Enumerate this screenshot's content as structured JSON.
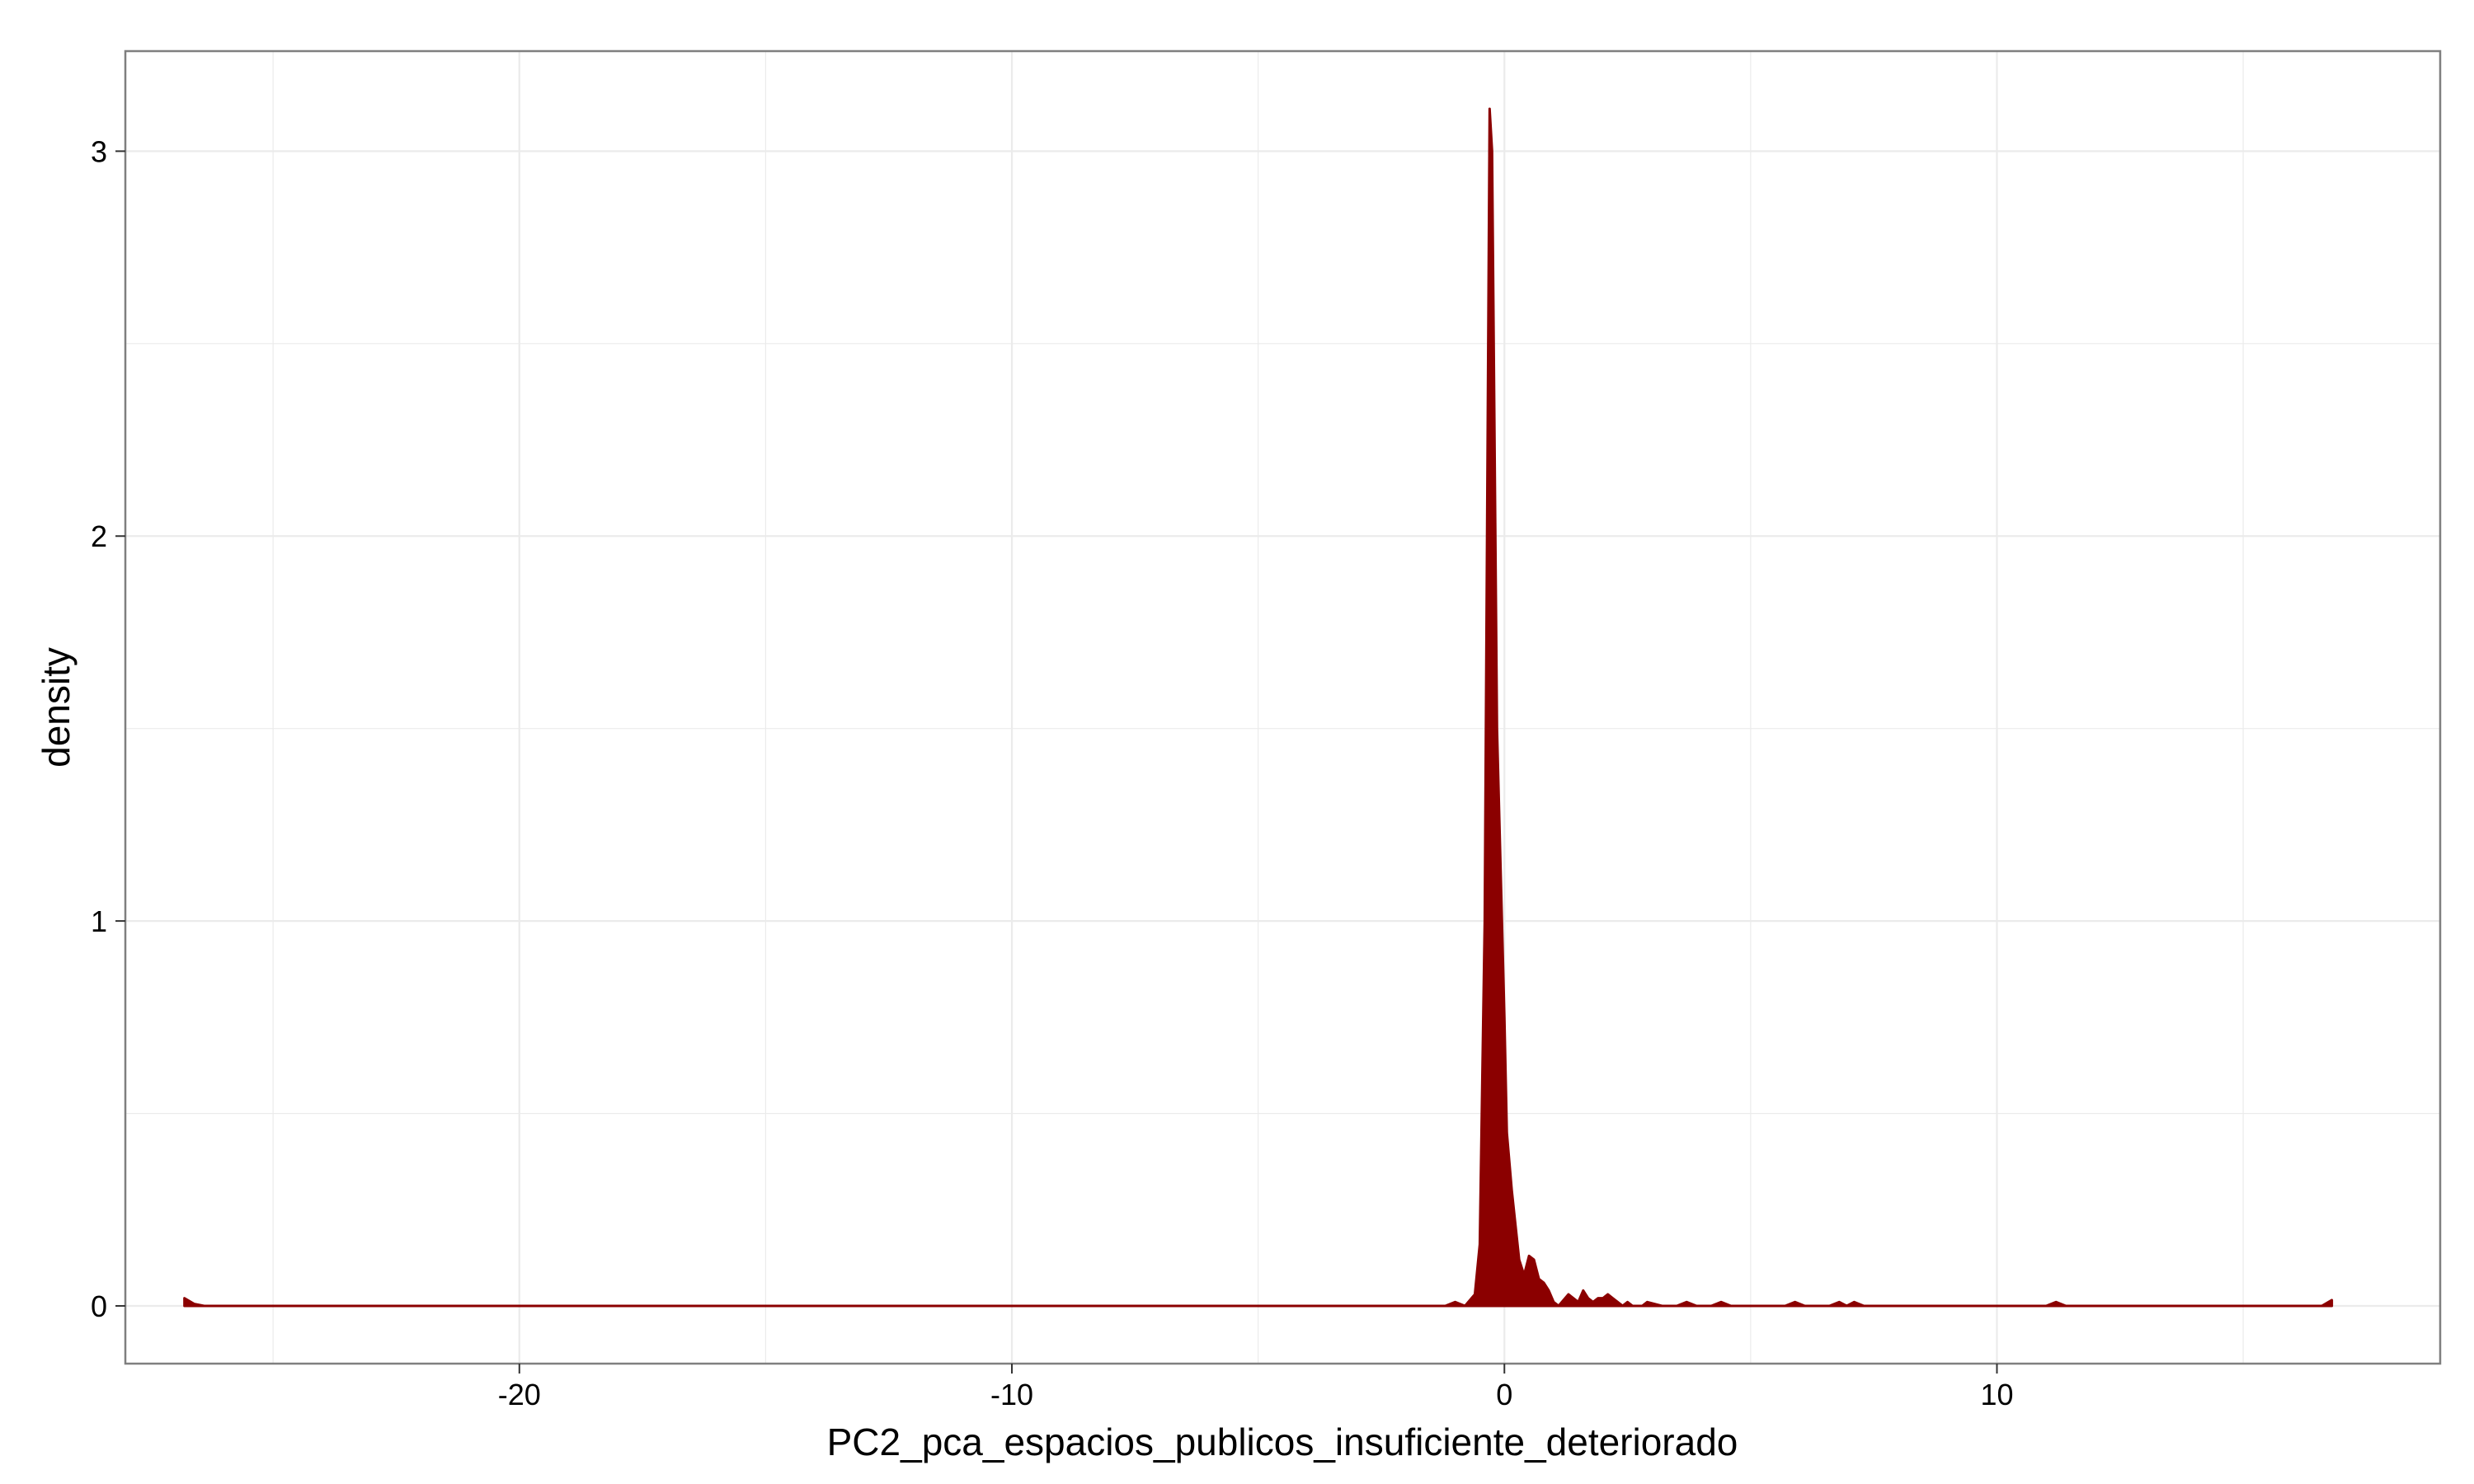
{
  "chart_data": {
    "type": "area",
    "title": "",
    "xlabel": "PC2_pca_espacios_publicos_insuficiente_deteriorado",
    "ylabel": "density",
    "xlim": [
      -28.0,
      19.0
    ],
    "ylim": [
      -0.15,
      3.26
    ],
    "x_ticks": [
      -20,
      -10,
      0,
      10
    ],
    "x_tick_labels": [
      "-20",
      "-10",
      "0",
      "10"
    ],
    "y_ticks": [
      0,
      1,
      2,
      3
    ],
    "y_tick_labels": [
      "0",
      "1",
      "2",
      "3"
    ],
    "grid": true,
    "legend": "none",
    "colors": {
      "fill": "#8b0000",
      "panel_border": "#7f7f7f",
      "grid": "#ebebeb"
    },
    "series": [
      {
        "x": [
          -26.8,
          -26.6,
          -26.4,
          -1.2,
          -1.0,
          -0.8,
          -0.6,
          -0.5,
          -0.4,
          -0.3,
          -0.25,
          -0.15,
          0.0,
          0.05,
          0.15,
          0.3,
          0.4,
          0.5,
          0.6,
          0.7,
          0.8,
          0.9,
          1.0,
          1.1,
          1.3,
          1.5,
          1.6,
          1.7,
          1.8,
          1.9,
          2.0,
          2.1,
          2.2,
          2.3,
          2.4,
          2.5,
          2.6,
          2.8,
          2.9,
          3.2,
          3.5,
          3.7,
          3.9,
          4.2,
          4.4,
          4.6,
          5.7,
          5.9,
          6.1,
          6.6,
          6.8,
          6.95,
          7.1,
          7.3,
          11.0,
          11.2,
          11.4,
          16.6,
          16.8
        ],
        "y": [
          0.02,
          0.005,
          0.0,
          0.0,
          0.01,
          0.0,
          0.03,
          0.16,
          1.0,
          3.11,
          3.0,
          1.5,
          0.75,
          0.45,
          0.3,
          0.12,
          0.08,
          0.13,
          0.12,
          0.07,
          0.06,
          0.04,
          0.01,
          0.0,
          0.03,
          0.01,
          0.04,
          0.02,
          0.01,
          0.02,
          0.02,
          0.03,
          0.02,
          0.01,
          0.0,
          0.01,
          0.0,
          0.0,
          0.01,
          0.0,
          0.0,
          0.01,
          0.0,
          0.0,
          0.01,
          0.0,
          0.0,
          0.01,
          0.0,
          0.0,
          0.01,
          0.0,
          0.01,
          0.0,
          0.0,
          0.01,
          0.0,
          0.0,
          0.015
        ]
      }
    ]
  }
}
